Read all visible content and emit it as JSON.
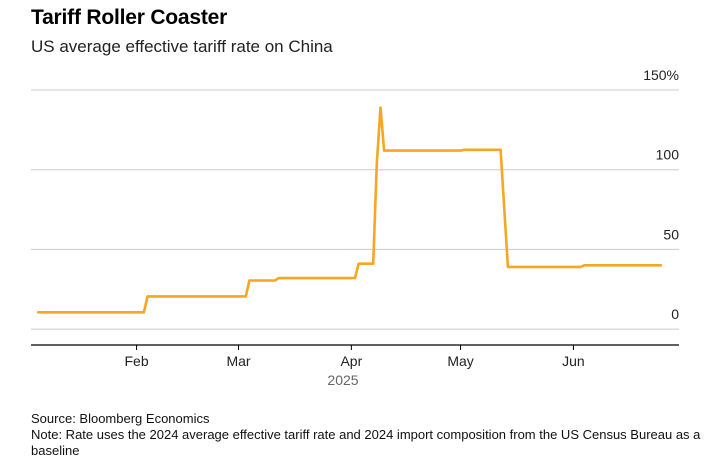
{
  "title": "Tariff Roller Coaster",
  "subtitle": "US average effective tariff rate on China",
  "footer": {
    "source": "Source: Bloomberg Economics",
    "note": "Note: Rate uses the 2024 average effective tariff rate and 2024 import composition from the US Census Bureau as a baseline"
  },
  "colors": {
    "line": "#f5a623",
    "grid": "#cccccc",
    "axis": "#000000"
  },
  "chart_data": {
    "type": "line",
    "title": "Tariff Roller Coaster",
    "subtitle": "US average effective tariff rate on China",
    "x_label": "2025",
    "y_unit": "%",
    "y_ticks": [
      0,
      50,
      100,
      150
    ],
    "y_tick_labels": [
      "0",
      "50",
      "100",
      "150%"
    ],
    "ylim": [
      -10,
      150
    ],
    "y_axis_position": "right",
    "grid": true,
    "x_ticks": [
      "2025-02-01",
      "2025-03-01",
      "2025-04-01",
      "2025-05-01",
      "2025-06-01"
    ],
    "x_tick_labels": [
      "Feb",
      "Mar",
      "Apr",
      "May",
      "Jun"
    ],
    "xlim": [
      "2025-01-03",
      "2025-06-30"
    ],
    "series": [
      {
        "points": [
          [
            "2025-01-05",
            10.5
          ],
          [
            "2025-02-03",
            10.5
          ],
          [
            "2025-02-04",
            20.5
          ],
          [
            "2025-03-03",
            20.5
          ],
          [
            "2025-03-04",
            30.5
          ],
          [
            "2025-03-11",
            30.5
          ],
          [
            "2025-03-12",
            32
          ],
          [
            "2025-04-02",
            32
          ],
          [
            "2025-04-03",
            41
          ],
          [
            "2025-04-07",
            41
          ],
          [
            "2025-04-08",
            104
          ],
          [
            "2025-04-09",
            139
          ],
          [
            "2025-04-10",
            112
          ],
          [
            "2025-05-01",
            112
          ],
          [
            "2025-05-02",
            112.5
          ],
          [
            "2025-05-12",
            112.5
          ],
          [
            "2025-05-14",
            39
          ],
          [
            "2025-06-03",
            39
          ],
          [
            "2025-06-04",
            40
          ],
          [
            "2025-06-25",
            40
          ]
        ]
      }
    ]
  }
}
